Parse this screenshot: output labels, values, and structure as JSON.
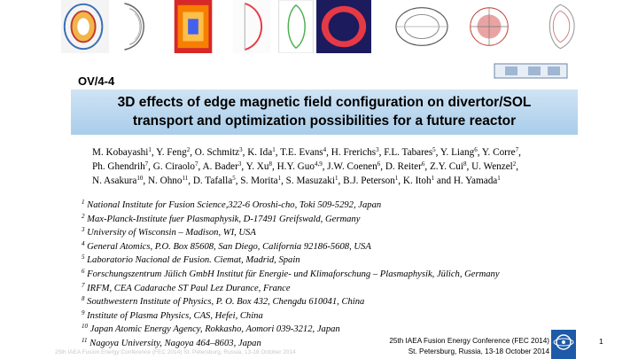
{
  "colors": {
    "title_bg": "#b9d7ee",
    "footer_text": "#c8c8c8",
    "logo_blue": "#1d5aa8"
  },
  "header": {
    "code": "OV/4-4"
  },
  "title": {
    "line1": "3D effects of edge magnetic field configuration on divertor/SOL",
    "line2": "transport and optimization possibilities for a future reactor"
  },
  "authors": [
    [
      {
        "name": "M. Kobayashi",
        "sup": "1"
      },
      {
        "name": "Y. Feng",
        "sup": "2"
      },
      {
        "name": "O. Schmitz",
        "sup": "3"
      },
      {
        "name": "K. Ida",
        "sup": "1"
      },
      {
        "name": "T.E. Evans",
        "sup": "4"
      },
      {
        "name": "H. Frerichs",
        "sup": "3"
      },
      {
        "name": "F.L. Tabares",
        "sup": "5"
      },
      {
        "name": "Y. Liang",
        "sup": "6"
      },
      {
        "name": "Y. Corre",
        "sup": "7"
      }
    ],
    [
      {
        "name": "Ph. Ghendrih",
        "sup": "7"
      },
      {
        "name": "G. Ciraolo",
        "sup": "7"
      },
      {
        "name": "A. Bader",
        "sup": "3"
      },
      {
        "name": "Y. Xu",
        "sup": "8"
      },
      {
        "name": "H.Y. Guo",
        "sup": "4,9"
      },
      {
        "name": "J.W. Coenen",
        "sup": "6"
      },
      {
        "name": "D. Reiter",
        "sup": "6"
      },
      {
        "name": "Z.Y. Cui",
        "sup": "8"
      },
      {
        "name": "U. Wenzel",
        "sup": "2"
      }
    ],
    [
      {
        "name": "N. Asakura",
        "sup": "10"
      },
      {
        "name": "N. Ohno",
        "sup": "11"
      },
      {
        "name": "D. Tafalla",
        "sup": "5"
      },
      {
        "name": "S. Morita",
        "sup": "1"
      },
      {
        "name": "S. Masuzaki",
        "sup": "1"
      },
      {
        "name": "B.J. Peterson",
        "sup": "1"
      },
      {
        "name": "K. Itoh",
        "sup": "1"
      },
      {
        "name": "H. Yamada",
        "sup": "1"
      }
    ]
  ],
  "affiliations": [
    {
      "num": "1",
      "text": "National Institute for Fusion Science,322-6 Oroshi-cho, Toki 509-5292, Japan"
    },
    {
      "num": "2",
      "text": "Max-Planck-Institute fuer Plasmaphysik, D-17491 Greifswald, Germany"
    },
    {
      "num": "3",
      "text": "University of Wisconsin – Madison, WI, USA"
    },
    {
      "num": "4",
      "text": "General Atomics, P.O. Box 85608, San Diego, California 92186-5608, USA"
    },
    {
      "num": "5",
      "text": "Laboratorio Nacional de Fusion. Ciemat, Madrid, Spain"
    },
    {
      "num": "6",
      "text": "Forschungszentrum Jülich GmbH Institut für Energie- und Klimaforschung – Plasmaphysik, Jülich, Germany"
    },
    {
      "num": "7",
      "text": "IRFM, CEA Cadarache ST Paul Lez Durance, France"
    },
    {
      "num": "8",
      "text": "Southwestern Institute of Physics, P. O. Box 432, Chengdu 610041, China"
    },
    {
      "num": "9",
      "text": "Institute of Plasma Physics, CAS, Hefei, China"
    },
    {
      "num": "10",
      "text": "Japan Atomic Energy Agency, Rokkasho, Aomori 039-3212, Japan"
    },
    {
      "num": "11",
      "text": "Nagoya University, Nagoya 464–8603, Japan"
    }
  ],
  "conference": {
    "line1": "25th IAEA Fusion Energy Conference (FEC 2014)",
    "line2": "St. Petersburg, Russia, 13-18 October 2014"
  },
  "page_number": "1",
  "footer_watermark": "25th IAEA Fusion Energy Conference (FEC 2014) St. Petersburg, Russia, 13-18 October 2014"
}
